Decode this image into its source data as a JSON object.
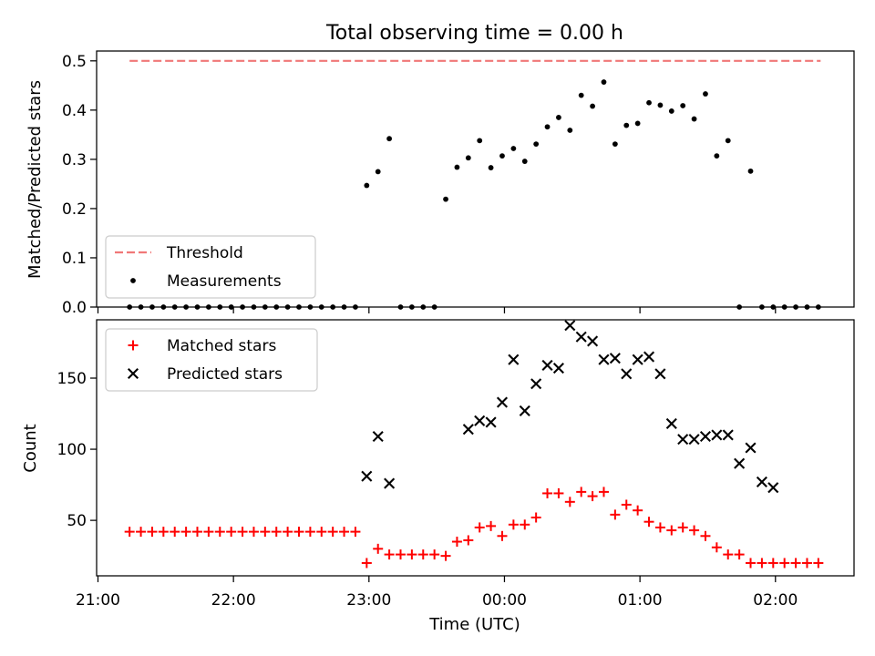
{
  "figure": {
    "title": "Total observing time = 0.00 h"
  },
  "chart_data": [
    {
      "type": "scatter",
      "ylabel": "Matched/Predicted stars",
      "xlabel": "",
      "ylim": [
        0,
        0.52
      ],
      "yticks": [
        "0.0",
        "0.1",
        "0.2",
        "0.3",
        "0.4",
        "0.5"
      ],
      "xlim_hours": [
        20.99,
        26.58
      ],
      "xticks": [
        "21:00",
        "22:00",
        "23:00",
        "00:00",
        "01:00",
        "02:00"
      ],
      "grid": false,
      "legend_position": "lower-left",
      "series": [
        {
          "name": "Threshold",
          "kind": "line",
          "style": "dashed",
          "color": "#f07878",
          "x": [
            "21:14",
            "02:20"
          ],
          "y": [
            0.5,
            0.5
          ]
        },
        {
          "name": "Measurements",
          "kind": "points",
          "color": "#000000",
          "x": [
            "21:14",
            "21:19",
            "21:24",
            "21:29",
            "21:34",
            "21:39",
            "21:44",
            "21:49",
            "21:54",
            "21:59",
            "22:04",
            "22:09",
            "22:14",
            "22:19",
            "22:24",
            "22:29",
            "22:34",
            "22:39",
            "22:44",
            "22:49",
            "22:54",
            "22:59",
            "23:04",
            "23:09",
            "23:14",
            "23:19",
            "23:24",
            "23:29",
            "23:34",
            "23:39",
            "23:44",
            "23:49",
            "23:54",
            "23:59",
            "00:04",
            "00:09",
            "00:14",
            "00:19",
            "00:24",
            "00:29",
            "00:34",
            "00:39",
            "00:44",
            "00:49",
            "00:54",
            "00:59",
            "01:04",
            "01:09",
            "01:14",
            "01:19",
            "01:24",
            "01:29",
            "01:34",
            "01:39",
            "01:44",
            "01:49",
            "01:54",
            "01:59",
            "02:04",
            "02:09",
            "02:14",
            "02:19"
          ],
          "y": [
            0,
            0,
            0,
            0,
            0,
            0,
            0,
            0,
            0,
            0,
            0,
            0,
            0,
            0,
            0,
            0,
            0,
            0,
            0,
            0,
            0,
            0.247,
            0.275,
            0.342,
            0,
            0,
            0,
            0,
            0.219,
            0.284,
            0.303,
            0.338,
            0.283,
            0.307,
            0.322,
            0.296,
            0.331,
            0.366,
            0.385,
            0.359,
            0.43,
            0.408,
            0.457,
            0.331,
            0.369,
            0.373,
            0.415,
            0.41,
            0.398,
            0.409,
            0.382,
            0.433,
            0.307,
            0.338,
            0,
            0.276,
            0,
            0,
            0,
            0,
            0,
            0
          ]
        }
      ]
    },
    {
      "type": "scatter",
      "ylabel": "Count",
      "xlabel": "Time (UTC)",
      "ylim": [
        11,
        191
      ],
      "yticks": [
        "50",
        "100",
        "150"
      ],
      "xlim_hours": [
        20.99,
        26.58
      ],
      "xticks": [
        "21:00",
        "22:00",
        "23:00",
        "00:00",
        "01:00",
        "02:00"
      ],
      "grid": false,
      "legend_position": "upper-left",
      "series": [
        {
          "name": "Matched stars",
          "marker": "plus",
          "color": "#ff0000",
          "x": [
            "21:14",
            "21:19",
            "21:24",
            "21:29",
            "21:34",
            "21:39",
            "21:44",
            "21:49",
            "21:54",
            "21:59",
            "22:04",
            "22:09",
            "22:14",
            "22:19",
            "22:24",
            "22:29",
            "22:34",
            "22:39",
            "22:44",
            "22:49",
            "22:54",
            "22:59",
            "23:04",
            "23:09",
            "23:14",
            "23:19",
            "23:24",
            "23:29",
            "23:34",
            "23:39",
            "23:44",
            "23:49",
            "23:54",
            "23:59",
            "00:04",
            "00:09",
            "00:14",
            "00:19",
            "00:24",
            "00:29",
            "00:34",
            "00:39",
            "00:44",
            "00:49",
            "00:54",
            "00:59",
            "01:04",
            "01:09",
            "01:14",
            "01:19",
            "01:24",
            "01:29",
            "01:34",
            "01:39",
            "01:44",
            "01:49",
            "01:54",
            "01:59",
            "02:04",
            "02:09",
            "02:14",
            "02:19"
          ],
          "y": [
            42,
            42,
            42,
            42,
            42,
            42,
            42,
            42,
            42,
            42,
            42,
            42,
            42,
            42,
            42,
            42,
            42,
            42,
            42,
            42,
            42,
            20,
            30,
            26,
            26,
            26,
            26,
            26,
            25,
            35,
            36,
            45,
            46,
            39,
            47,
            47,
            52,
            69,
            69,
            63,
            70,
            67,
            70,
            54,
            61,
            57,
            49,
            45,
            43,
            45,
            43,
            39,
            31,
            26,
            26,
            20,
            20,
            20,
            20,
            20,
            20,
            20
          ]
        },
        {
          "name": "Predicted stars",
          "marker": "x",
          "color": "#000000",
          "x": [
            "22:59",
            "23:04",
            "23:09",
            "23:44",
            "23:49",
            "23:54",
            "23:59",
            "00:04",
            "00:09",
            "00:14",
            "00:19",
            "00:24",
            "00:29",
            "00:34",
            "00:39",
            "00:44",
            "00:49",
            "00:54",
            "00:59",
            "01:04",
            "01:09",
            "01:14",
            "01:19",
            "01:24",
            "01:29",
            "01:34",
            "01:39",
            "01:44",
            "01:49",
            "01:54",
            "01:59"
          ],
          "y": [
            81,
            109,
            76,
            114,
            120,
            119,
            133,
            163,
            127,
            146,
            159,
            157,
            187,
            179,
            176,
            163,
            164,
            153,
            163,
            165,
            153,
            118,
            107,
            107,
            109,
            110,
            110,
            90,
            101,
            77,
            73
          ]
        }
      ]
    }
  ]
}
